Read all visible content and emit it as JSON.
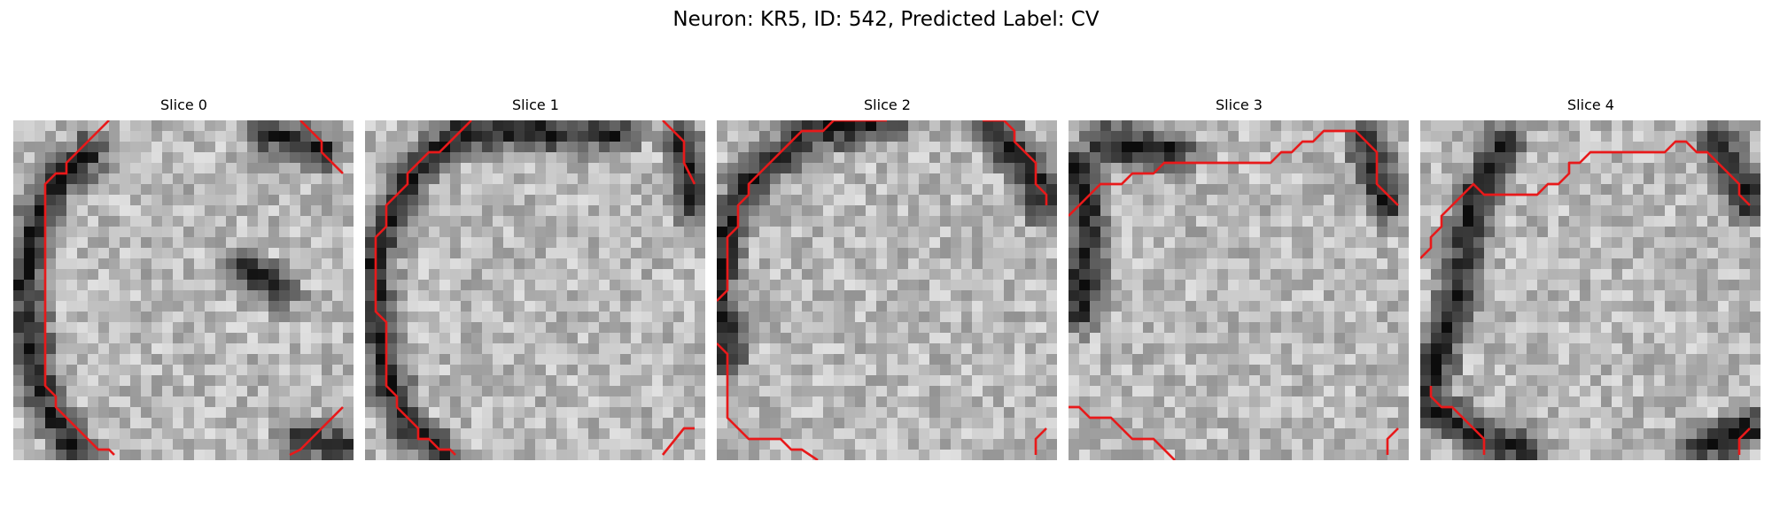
{
  "title": "Neuron: KR5, ID: 542, Predicted Label: CV",
  "slices": [
    {
      "label": "Slice 0"
    },
    {
      "label": "Slice 1"
    },
    {
      "label": "Slice 2"
    },
    {
      "label": "Slice 3"
    },
    {
      "label": "Slice 4"
    }
  ],
  "colors": {
    "contour": "#e8191a"
  }
}
